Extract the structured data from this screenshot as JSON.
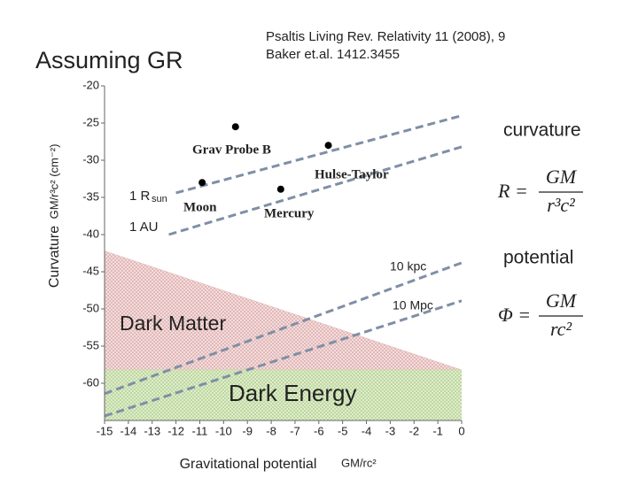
{
  "slide": {
    "heading": "Assuming GR",
    "reference1": "Psaltis Living Rev. Relativity 11 (2008), 9",
    "reference2": "Baker et.al. 1412.3455",
    "curvature_label": "curvature",
    "potential_label": "potential",
    "curvature_formula": {
      "lhs": "R =",
      "numerator": "GM",
      "denominator": "r³c²"
    },
    "potential_formula": {
      "lhs": "Φ =",
      "numerator": "GM",
      "denominator": "rc²"
    }
  },
  "chart_data": {
    "type": "scatter",
    "y_label": "Curvature",
    "y_unit": "GM/r³c² (cm⁻²)",
    "x_label": "Gravitational potential",
    "x_unit": "GM/rc²",
    "xlim": [
      -15,
      0
    ],
    "ylim": [
      -65,
      -20
    ],
    "xticks": [
      -15,
      -14,
      -13,
      -12,
      -11,
      -10,
      -9,
      -8,
      -7,
      -6,
      -5,
      -4,
      -3,
      -2,
      -1,
      0
    ],
    "yticks": [
      -20,
      -25,
      -30,
      -35,
      -40,
      -45,
      -50,
      -55,
      -60
    ],
    "points": {
      "color": "#000000",
      "x": [
        -9.5,
        -10.9,
        -7.6,
        -5.6
      ],
      "y": [
        -25.5,
        -33.0,
        -33.9,
        -28.0
      ]
    },
    "lines": [
      {
        "color": "#7f8fa6",
        "x": [
          -12,
          0
        ],
        "y": [
          -34.4,
          -24.0
        ]
      },
      {
        "color": "#7f8fa6",
        "x": [
          -12.3,
          0
        ],
        "y": [
          -40.0,
          -28.2
        ]
      },
      {
        "color": "#7f8fa6",
        "x": [
          -15,
          0
        ],
        "y": [
          -61.4,
          -43.8
        ]
      },
      {
        "color": "#7f8fa6",
        "x": [
          -15,
          0
        ],
        "y": [
          -64.4,
          -48.9
        ]
      }
    ],
    "regions": [
      {
        "name": "Dark Matter",
        "color": "#e8b8b8",
        "x": [
          -15,
          0,
          -15
        ],
        "y": [
          -42.2,
          -58.2,
          -58.2
        ]
      },
      {
        "name": "Dark Energy",
        "color": "#c6e0a4",
        "x": [
          -15,
          0,
          0,
          -15
        ],
        "y": [
          -58.2,
          -58.2,
          -65,
          -65
        ]
      }
    ],
    "annotations": [
      "Grav Probe B",
      "Hulse-Taylor",
      "Moon",
      "Mercury",
      "1 R",
      "sun",
      "1 AU",
      "10 kpc",
      "10 Mpc"
    ]
  }
}
